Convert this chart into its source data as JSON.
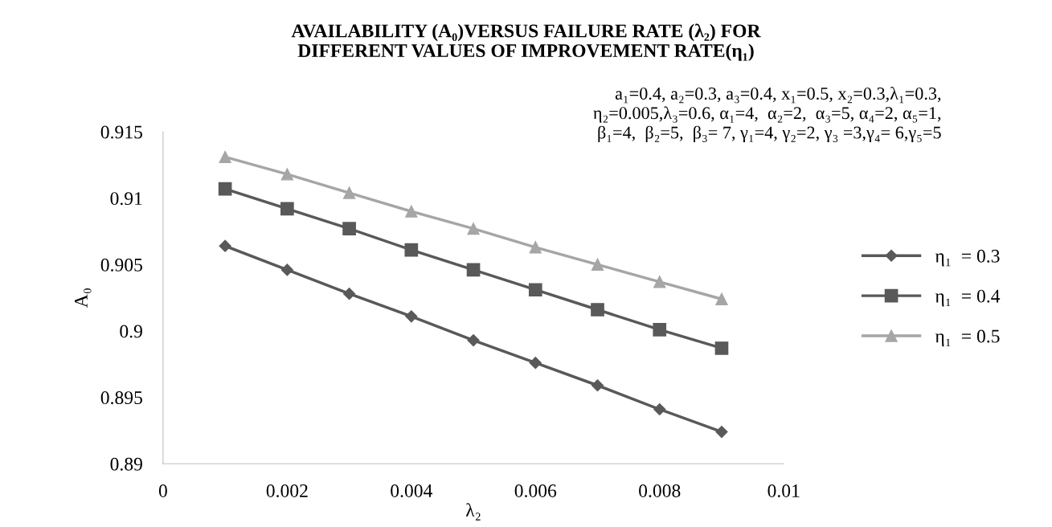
{
  "chart_data": {
    "type": "line",
    "title": "AVAILABILITY (A₀)VERSUS FAILURE RATE (λ₂) FOR\nDIFFERENT VALUES OF IMPROVEMENT RATE(η₁)",
    "xlabel": "λ₂",
    "ylabel": "A₀",
    "annotations": [
      "a₁=0.4, a₂=0.3, a₃=0.4, x₁=0.5, x₂=0.3,λ₁=0.3,\nη₂=0.005,λ₃=0.6, α₁=4,  α₂=2,  α₃=5, α₄=2, α₅=1,\nβ₁=4,  β₂=5,  β₃= 7, γ₁=4, γ₂=2, γ₃ =3,γ₄= 6,γ₅=5"
    ],
    "x": [
      0.001,
      0.002,
      0.003,
      0.004,
      0.005,
      0.006,
      0.007,
      0.008,
      0.009
    ],
    "series": [
      {
        "name": "η₁  = 0.3",
        "color": "#595959",
        "marker": "diamond",
        "values": [
          0.9064,
          0.9046,
          0.9028,
          0.9011,
          0.8993,
          0.8976,
          0.8959,
          0.8941,
          0.8924
        ]
      },
      {
        "name": "η₁  = 0.4",
        "color": "#595959",
        "marker": "square",
        "values": [
          0.9107,
          0.9092,
          0.9077,
          0.9061,
          0.9046,
          0.9031,
          0.9016,
          0.9001,
          0.8987
        ]
      },
      {
        "name": "η₁  = 0.5",
        "color": "#a6a6a6",
        "marker": "triangle",
        "values": [
          0.9131,
          0.9118,
          0.9104,
          0.909,
          0.9077,
          0.9063,
          0.905,
          0.9037,
          0.9024
        ]
      }
    ],
    "xlim": [
      0,
      0.01
    ],
    "xticks": [
      0,
      0.002,
      0.004,
      0.006,
      0.008,
      0.01
    ],
    "ylim": [
      0.89,
      0.915
    ],
    "yticks": [
      0.89,
      0.895,
      0.9,
      0.905,
      0.91,
      0.915
    ],
    "grid": false,
    "legend": "right",
    "line_style": "solid"
  }
}
